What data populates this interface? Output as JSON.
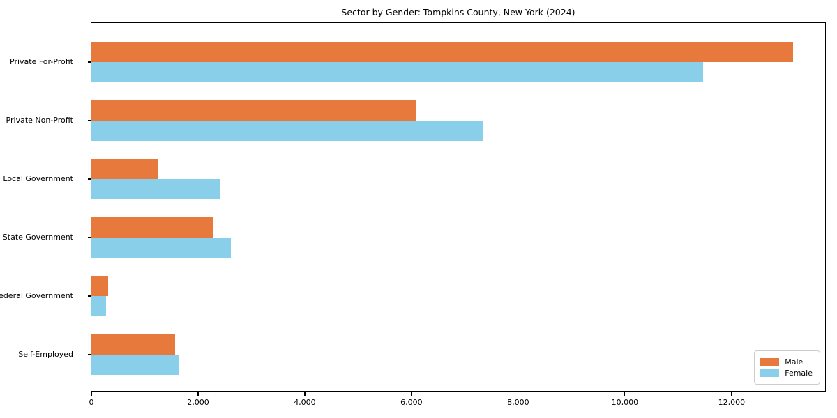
{
  "chart_data": {
    "type": "bar",
    "orientation": "horizontal",
    "title": "Sector by Gender: Tompkins County, New York (2024)",
    "categories": [
      "Private For-Profit",
      "Private Non-Profit",
      "Local Government",
      "State Government",
      "Federal Government",
      "Self-Employed"
    ],
    "series": [
      {
        "name": "Male",
        "color": "#e8793d",
        "values": [
          13150,
          6080,
          1260,
          2270,
          310,
          1570
        ]
      },
      {
        "name": "Female",
        "color": "#89cfea",
        "values": [
          11470,
          7350,
          2400,
          2620,
          270,
          1630
        ]
      }
    ],
    "xlabel": "",
    "ylabel": "",
    "xlim": [
      0,
      13780
    ],
    "xticks": [
      0,
      2000,
      4000,
      6000,
      8000,
      10000,
      12000
    ],
    "xtick_labels": [
      "0",
      "2,000",
      "4,000",
      "6,000",
      "8,000",
      "10,000",
      "12,000"
    ],
    "grid": false,
    "legend": {
      "position": "lower right",
      "entries": [
        "Male",
        "Female"
      ]
    }
  }
}
